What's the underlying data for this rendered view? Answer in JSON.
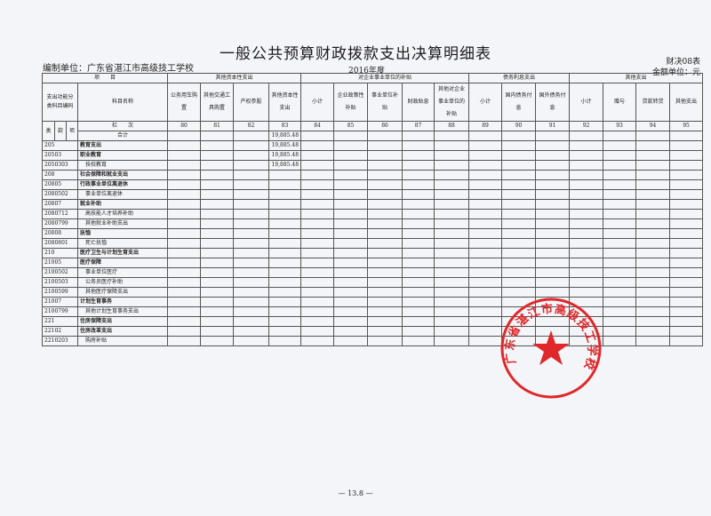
{
  "title": "一般公共预算财政拨款支出决算明细表",
  "unit": "编制单位：广东省湛江市高级技工学校",
  "year": "2016年度",
  "form_no": "财决08表",
  "money_unit": "金额单位：元",
  "header": {
    "project": "项　　目",
    "groups": [
      "其他资本性支出",
      "对企业事业单位的补贴",
      "债务利息支出",
      "其他支出"
    ],
    "code_label": "支出功能分类科目编码",
    "name_label": "科目名称",
    "columns": [
      "公务用车购置",
      "其他交通工具购置",
      "产权参股",
      "其他资本性支出",
      "小计",
      "企业政策性补贴",
      "事业单位补贴",
      "财政贴息",
      "其他对企业事业单位的补贴",
      "小计",
      "国内债务付息",
      "国外债务付息",
      "小计",
      "赠与",
      "贷款转贷",
      "其他支出"
    ],
    "lei": "类",
    "kuan": "款",
    "xiang": "项",
    "lanci": "栏　　次",
    "col_numbers": [
      "80",
      "81",
      "82",
      "83",
      "84",
      "85",
      "86",
      "87",
      "88",
      "89",
      "90",
      "91",
      "92",
      "93",
      "94",
      "95"
    ],
    "total_label": "合计",
    "total_values": [
      "",
      "",
      "",
      "19,885.48",
      "",
      "",
      "",
      "",
      "",
      "",
      "",
      "",
      "",
      "",
      "",
      ""
    ]
  },
  "rows": [
    {
      "code": "205",
      "name": "教育支出",
      "level": 1,
      "values": [
        "",
        "",
        "",
        "19,885.48"
      ]
    },
    {
      "code": "20503",
      "name": "职业教育",
      "level": 1,
      "values": [
        "",
        "",
        "",
        "19,885.48"
      ]
    },
    {
      "code": "2050303",
      "name": "技校教育",
      "level": 2,
      "values": [
        "",
        "",
        "",
        "19,885.48"
      ]
    },
    {
      "code": "208",
      "name": "社会保障和就业支出",
      "level": 1,
      "values": []
    },
    {
      "code": "20805",
      "name": "行政事业单位离退休",
      "level": 1,
      "values": []
    },
    {
      "code": "2080502",
      "name": "事业单位离退休",
      "level": 2,
      "values": []
    },
    {
      "code": "20807",
      "name": "就业补助",
      "level": 1,
      "values": []
    },
    {
      "code": "2080712",
      "name": "高技能人才培养补助",
      "level": 2,
      "values": []
    },
    {
      "code": "2080799",
      "name": "其他就业补助支出",
      "level": 2,
      "values": []
    },
    {
      "code": "20808",
      "name": "抚恤",
      "level": 1,
      "values": []
    },
    {
      "code": "2080801",
      "name": "死亡抚恤",
      "level": 2,
      "values": []
    },
    {
      "code": "210",
      "name": "医疗卫生与计划生育支出",
      "level": 1,
      "values": []
    },
    {
      "code": "21005",
      "name": "医疗保障",
      "level": 1,
      "values": []
    },
    {
      "code": "2100502",
      "name": "事业单位医疗",
      "level": 2,
      "values": []
    },
    {
      "code": "2100503",
      "name": "公务员医疗补助",
      "level": 2,
      "values": []
    },
    {
      "code": "2100599",
      "name": "其他医疗保障支出",
      "level": 2,
      "values": []
    },
    {
      "code": "21007",
      "name": "计划生育事务",
      "level": 1,
      "values": []
    },
    {
      "code": "2100799",
      "name": "其他计划生育事务支出",
      "level": 2,
      "values": []
    },
    {
      "code": "221",
      "name": "住房保障支出",
      "level": 1,
      "values": []
    },
    {
      "code": "22102",
      "name": "住房改革支出",
      "level": 1,
      "values": []
    },
    {
      "code": "2210203",
      "name": "购房补贴",
      "level": 2,
      "values": []
    }
  ],
  "stamp_text": "广东省湛江市高级技工学校",
  "stamp_color": "#e0282a",
  "page_number": "— 13.8 —"
}
